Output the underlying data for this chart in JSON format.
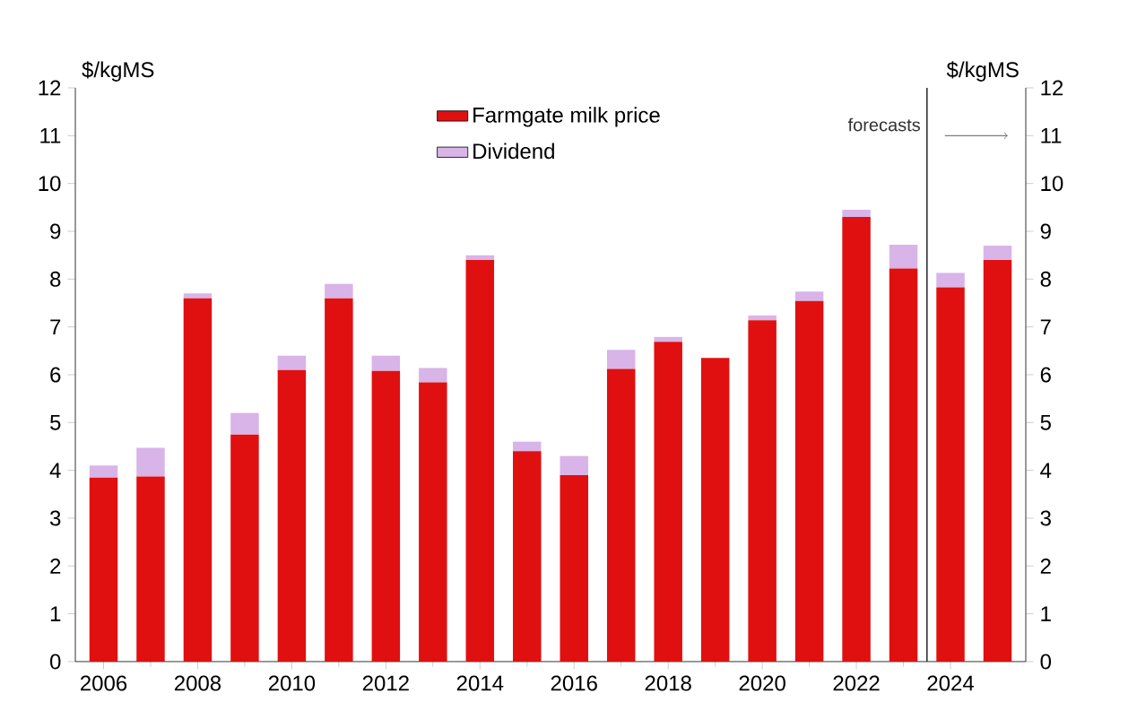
{
  "chart_data": {
    "type": "bar",
    "stacked": true,
    "ylabel": "$/kgMS",
    "y2label": "$/kgMS",
    "x": [
      2006,
      2007,
      2008,
      2009,
      2010,
      2011,
      2012,
      2013,
      2014,
      2015,
      2016,
      2017,
      2018,
      2019,
      2020,
      2021,
      2022,
      2023,
      2024,
      2025
    ],
    "series": [
      {
        "name": "Farmgate milk price",
        "color": "#e01010",
        "values": [
          3.85,
          3.87,
          7.6,
          4.75,
          6.1,
          7.6,
          6.08,
          5.84,
          8.4,
          4.4,
          3.9,
          6.12,
          6.69,
          6.35,
          7.14,
          7.54,
          9.3,
          8.22,
          7.83,
          8.4
        ]
      },
      {
        "name": "Dividend",
        "color": "#d8b4e8",
        "values": [
          0.25,
          0.6,
          0.1,
          0.45,
          0.3,
          0.3,
          0.32,
          0.3,
          0.1,
          0.2,
          0.4,
          0.4,
          0.1,
          0,
          0.1,
          0.2,
          0.15,
          0.5,
          0.3,
          0.3
        ]
      }
    ],
    "xlim": [
      2005.4,
      2025.6
    ],
    "xticks": [
      2006,
      2008,
      2010,
      2012,
      2014,
      2016,
      2018,
      2020,
      2022,
      2024
    ],
    "ylim": [
      0,
      12
    ],
    "yticks": [
      0,
      1,
      2,
      3,
      4,
      5,
      6,
      7,
      8,
      9,
      10,
      11,
      12
    ],
    "y2lim": [
      0,
      12
    ],
    "y2ticks": [
      0,
      1,
      2,
      3,
      4,
      5,
      6,
      7,
      8,
      9,
      10,
      11,
      12
    ],
    "ref_lines": [
      {
        "axis": "x",
        "value": 2023.5,
        "label": "forecasts",
        "color": "#333333"
      }
    ],
    "legend": "top",
    "grid": false
  }
}
